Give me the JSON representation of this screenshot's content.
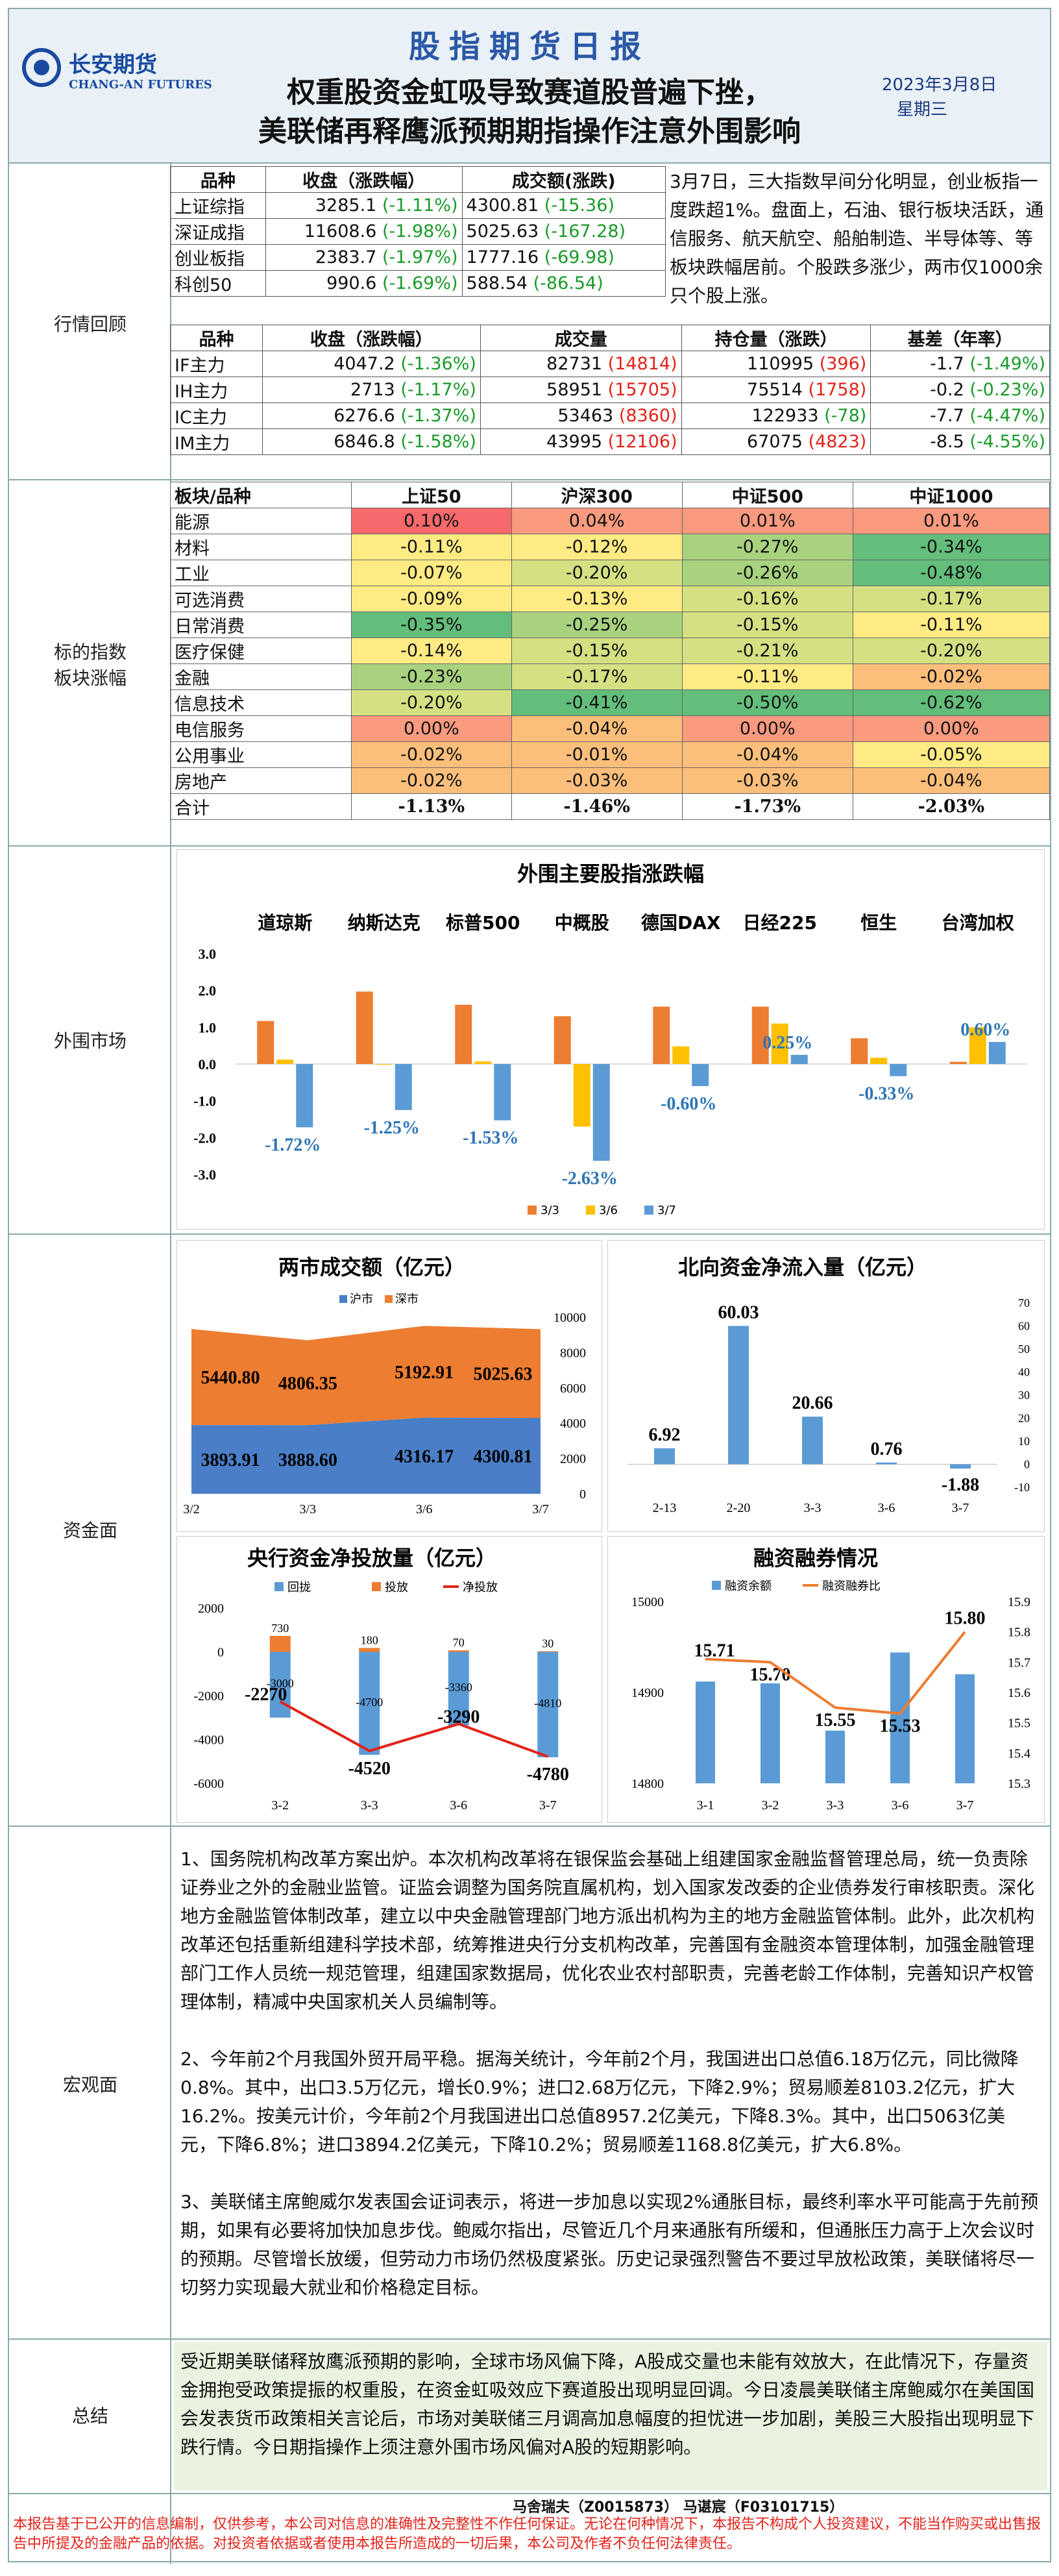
{
  "header": {
    "logo_cn": "长安期货",
    "logo_en": "CHANG-AN FUTURES",
    "title": "股指期货日报",
    "headline1": "权重股资金虹吸导致赛道股普遍下挫，",
    "headline2": "美联储再释鹰派预期期指操作注意外围影响",
    "date": "2023年3月8日",
    "weekday": "星期三"
  },
  "sections": {
    "market": "行情回顾",
    "sector": "标的指数\n板块涨幅",
    "foreign": "外围市场",
    "funds": "资金面",
    "macro": "宏观面",
    "summary": "总结"
  },
  "market": {
    "index_header": [
      "品种",
      "收盘（涨跌幅）",
      "成交额(涨跌)"
    ],
    "indices": [
      {
        "name": "上证综指",
        "close": "3285.1",
        "chg": "(-1.11%)",
        "amt": "4300.81",
        "amtchg": "(-15.36)"
      },
      {
        "name": "深证成指",
        "close": "11608.6",
        "chg": "(-1.98%)",
        "amt": "5025.63",
        "amtchg": "(-167.28)"
      },
      {
        "name": "创业板指",
        "close": "2383.7",
        "chg": "(-1.97%)",
        "amt": "1777.16",
        "amtchg": "(-69.98)"
      },
      {
        "name": "科创50",
        "close": "990.6",
        "chg": "(-1.69%)",
        "amt": "588.54",
        "amtchg": "(-86.54)"
      }
    ],
    "review_text": "3月7日，三大指数早间分化明显，创业板指一度跌超1%。盘面上，石油、银行板块活跃，通信服务、航天航空、船舶制造、半导体等、等板块跌幅居前。个股跌多涨少，两市仅1000余只个股上涨。",
    "fut_header": [
      "品种",
      "收盘（涨跌幅）",
      "成交量",
      "持仓量（涨跌）",
      "基差（年率）"
    ],
    "futures": [
      {
        "name": "IF主力",
        "close": "4047.2",
        "chg": "(-1.36%)",
        "vol": "82731",
        "volchg": "(14814)",
        "oi": "110995",
        "oichg": "(396)",
        "oiclass": "r",
        "basis": "-1.7",
        "ann": "(-1.49%)"
      },
      {
        "name": "IH主力",
        "close": "2713",
        "chg": "(-1.17%)",
        "vol": "58951",
        "volchg": "(15705)",
        "oi": "75514",
        "oichg": "(1758)",
        "oiclass": "r",
        "basis": "-0.2",
        "ann": "(-0.23%)"
      },
      {
        "name": "IC主力",
        "close": "6276.6",
        "chg": "(-1.37%)",
        "vol": "53463",
        "volchg": "(8360)",
        "oi": "122933",
        "oichg": "(-78)",
        "oiclass": "g",
        "basis": "-7.7",
        "ann": "(-4.47%)"
      },
      {
        "name": "IM主力",
        "close": "6846.8",
        "chg": "(-1.58%)",
        "vol": "43995",
        "volchg": "(12106)",
        "oi": "67075",
        "oichg": "(4823)",
        "oiclass": "r",
        "basis": "-8.5",
        "ann": "(-4.55%)"
      }
    ]
  },
  "sector": {
    "header": [
      "板块/品种",
      "上证50",
      "沪深300",
      "中证500",
      "中证1000"
    ],
    "rows": [
      {
        "name": "能源",
        "v": [
          "0.10%",
          "0.04%",
          "0.01%",
          "0.01%"
        ]
      },
      {
        "name": "材料",
        "v": [
          "-0.11%",
          "-0.12%",
          "-0.27%",
          "-0.34%"
        ]
      },
      {
        "name": "工业",
        "v": [
          "-0.07%",
          "-0.20%",
          "-0.26%",
          "-0.48%"
        ]
      },
      {
        "name": "可选消费",
        "v": [
          "-0.09%",
          "-0.13%",
          "-0.16%",
          "-0.17%"
        ]
      },
      {
        "name": "日常消费",
        "v": [
          "-0.35%",
          "-0.25%",
          "-0.15%",
          "-0.11%"
        ]
      },
      {
        "name": "医疗保健",
        "v": [
          "-0.14%",
          "-0.15%",
          "-0.21%",
          "-0.20%"
        ]
      },
      {
        "name": "金融",
        "v": [
          "-0.23%",
          "-0.17%",
          "-0.11%",
          "-0.02%"
        ]
      },
      {
        "name": "信息技术",
        "v": [
          "-0.20%",
          "-0.41%",
          "-0.50%",
          "-0.62%"
        ]
      },
      {
        "name": "电信服务",
        "v": [
          "0.00%",
          "-0.04%",
          "0.00%",
          "0.00%"
        ]
      },
      {
        "name": "公用事业",
        "v": [
          "-0.02%",
          "-0.01%",
          "-0.04%",
          "-0.05%"
        ]
      },
      {
        "name": "房地产",
        "v": [
          "-0.02%",
          "-0.03%",
          "-0.03%",
          "-0.04%"
        ]
      }
    ],
    "total": {
      "name": "合计",
      "v": [
        "-1.13%",
        "-1.46%",
        "-1.73%",
        "-2.03%"
      ]
    },
    "colors": {
      "red_strong": "#f8696b",
      "red_mid": "#fa9a7e",
      "orange": "#fcbf7b",
      "yellow": "#ffeb84",
      "lightgreen": "#d5e082",
      "green_mid": "#a9d27f",
      "green_strong": "#63be7b"
    }
  },
  "chart_data": [
    {
      "type": "bar",
      "title": "外围主要股指涨跌幅",
      "categories": [
        "道琼斯",
        "纳斯达克",
        "标普500",
        "中概股",
        "德国DAX",
        "日经225",
        "恒生",
        "台湾加权"
      ],
      "series": [
        {
          "name": "3/3",
          "color": "#ed7d31",
          "values": [
            1.17,
            1.97,
            1.61,
            1.3,
            1.56,
            1.56,
            0.7,
            0.06
          ]
        },
        {
          "name": "3/6",
          "color": "#ffc000",
          "values": [
            0.12,
            0.0,
            0.07,
            -1.7,
            0.48,
            1.1,
            0.17,
            1.0
          ]
        },
        {
          "name": "3/7",
          "color": "#5b9bd5",
          "values": [
            -1.72,
            -1.25,
            -1.53,
            -2.63,
            -0.6,
            0.25,
            -0.33,
            0.6
          ]
        }
      ],
      "labels": [
        "-1.72%",
        "-1.25%",
        "-1.53%",
        "-2.63%",
        "-0.60%",
        "0.25%",
        "-0.33%",
        "0.60%"
      ],
      "ylim": [
        -3.0,
        3.0
      ],
      "yticks": [
        "3.0",
        "2.0",
        "1.0",
        "0.0",
        "-1.0",
        "-2.0",
        "-3.0"
      ]
    },
    {
      "type": "area",
      "title": "两市成交额（亿元）",
      "categories": [
        "3/2",
        "3/3",
        "3/6",
        "3/7"
      ],
      "series": [
        {
          "name": "沪市",
          "color": "#4a7fc8",
          "values": [
            3893.91,
            3888.6,
            4316.17,
            4300.81
          ]
        },
        {
          "name": "深市",
          "color": "#ed7d31",
          "values": [
            5440.8,
            4806.35,
            5192.91,
            5025.63
          ]
        }
      ],
      "ylim": [
        0,
        10000
      ],
      "yticks": [
        "10000",
        "8000",
        "6000",
        "4000",
        "2000",
        "0"
      ]
    },
    {
      "type": "bar",
      "title": "北向资金净流入量（亿元）",
      "categories": [
        "2-13",
        "2-20",
        "3-3",
        "3-6",
        "3-7"
      ],
      "values": [
        6.92,
        60.03,
        20.66,
        0.76,
        -1.88
      ],
      "labels": [
        "6.92",
        "60.03",
        "20.66",
        "0.76",
        "-1.88"
      ],
      "ylim": [
        -10,
        70
      ],
      "yticks": [
        "70",
        "60",
        "50",
        "40",
        "30",
        "20",
        "10",
        "0",
        "-10"
      ]
    },
    {
      "type": "bar",
      "title": "央行资金净投放量（亿元）",
      "categories": [
        "3-2",
        "3-3",
        "3-6",
        "3-7"
      ],
      "series": [
        {
          "name": "回拢",
          "color": "#5b9bd5",
          "values": [
            -3000,
            -4700,
            -3360,
            -4810
          ]
        },
        {
          "name": "投放",
          "color": "#ed7d31",
          "values": [
            730,
            180,
            70,
            30
          ]
        },
        {
          "name": "净投放",
          "color": "#e2231a",
          "values": [
            -2270,
            -4520,
            -3290,
            -4780
          ]
        }
      ],
      "ylim": [
        -6000,
        2000
      ],
      "yticks": [
        "2000",
        "0",
        "-2000",
        "-4000",
        "-6000"
      ]
    },
    {
      "type": "bar",
      "title": "融资融券情况",
      "categories": [
        "3-1",
        "3-2",
        "3-3",
        "3-6",
        "3-7"
      ],
      "series": [
        {
          "name": "融资余额",
          "color": "#5b9bd5",
          "values": [
            14912,
            14910,
            14858,
            14944,
            14920
          ]
        },
        {
          "name": "融资融券比",
          "color": "#ed7d31",
          "values": [
            15.71,
            15.7,
            15.55,
            15.53,
            15.8
          ]
        }
      ],
      "labels": [
        "15.71",
        "15.70",
        "15.55",
        "15.53",
        "15.80"
      ],
      "ylim": [
        14800,
        15000
      ],
      "y2lim": [
        15.3,
        15.9
      ],
      "yticks": [
        "15000",
        "14900",
        "14800"
      ],
      "y2ticks": [
        "15.9",
        "15.8",
        "15.7",
        "15.6",
        "15.5",
        "15.4",
        "15.3"
      ]
    }
  ],
  "macro": [
    "1、国务院机构改革方案出炉。本次机构改革将在银保监会基础上组建国家金融监督管理总局，统一负责除证券业之外的金融业监管。证监会调整为国务院直属机构，划入国家发改委的企业债券发行审核职责。深化地方金融监管体制改革，建立以中央金融管理部门地方派出机构为主的地方金融监管体制。此外，此次机构改革还包括重新组建科学技术部，统筹推进央行分支机构改革，完善国有金融资本管理体制，加强金融管理部门工作人员统一规范管理，组建国家数据局，优化农业农村部职责，完善老龄工作体制，完善知识产权管理体制，精减中央国家机关人员编制等。",
    "2、今年前2个月我国外贸开局平稳。据海关统计，今年前2个月，我国进出口总值6.18万亿元，同比微降0.8%。其中，出口3.5万亿元，增长0.9%；进口2.68万亿元，下降2.9%；贸易顺差8103.2亿元，扩大16.2%。按美元计价，今年前2个月我国进出口总值8957.2亿美元，下降8.3%。其中，出口5063亿美元，下降6.8%；进口3894.2亿美元，下降10.2%；贸易顺差1168.8亿美元，扩大6.8%。",
    "3、美联储主席鲍威尔发表国会证词表示，将进一步加息以实现2%通胀目标，最终利率水平可能高于先前预期，如果有必要将加快加息步伐。鲍威尔指出，尽管近几个月来通胀有所缓和，但通胀压力高于上次会议时的预期。尽管增长放缓，但劳动力市场仍然极度紧张。历史记录强烈警告不要过早放松政策，美联储将尽一切努力实现最大就业和价格稳定目标。"
  ],
  "summary": "受近期美联储释放鹰派预期的影响，全球市场风偏下降，A股成交量也未能有效放大，在此情况下，存量资金拥抱受政策提振的权重股，在资金虹吸效应下赛道股出现明显回调。今日凌晨美联储主席鲍威尔在美国国会发表货币政策相关言论后，市场对美联储三月调高加息幅度的担忧进一步加剧，美股三大股指出现明显下跌行情。今日期指操作上须注意外围市场风偏对A股的短期影响。",
  "footer": {
    "authors": "马舍瑞夫（Z0015873）    马谌宸（F03101715）",
    "disclaimer": "本报告基于已公开的信息编制，仅供参考，本公司对信息的准确性及完整性不作任何保证。无论在何种情况下，本报告不构成个人投资建议，不能当作购买或出售报告中所提及的金融产品的依据。对投资者依据或者使用本报告所造成的一切后果，本公司及作者不负任何法律责任。"
  }
}
